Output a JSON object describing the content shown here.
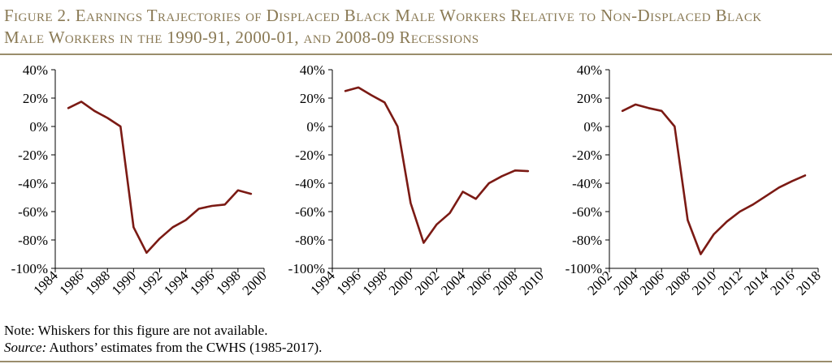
{
  "figure": {
    "title_line1": "Figure 2. Earnings Trajectories of Displaced Black Male Workers Relative to Non-Displaced Black",
    "title_line2": "Male Workers in the 1990-91, 2000-01, and 2008-09 Recessions"
  },
  "notes": {
    "note_label": "Note:",
    "note_text": " Whiskers for this figure are not available.",
    "source_label": "Source:",
    "source_text": " Authors’ estimates from the CWHS (1985-2017)."
  },
  "style": {
    "line_color": "#7b1a14",
    "axis_color": "#000000",
    "rule_color": "#9a8d6c",
    "title_color": "#8a7a55"
  },
  "chart_data": [
    {
      "type": "line",
      "title": "",
      "xlabel": "",
      "ylabel": "",
      "ylim": [
        -100,
        40
      ],
      "xlim": [
        1984,
        2000
      ],
      "yticks": [
        40,
        20,
        0,
        -20,
        -40,
        -60,
        -80,
        -100
      ],
      "ytick_labels": [
        "40%",
        "20%",
        "0%",
        "-20%",
        "-40%",
        "-60%",
        "-80%",
        "-100%"
      ],
      "xticks": [
        1984,
        1986,
        1988,
        1990,
        1992,
        1994,
        1996,
        1998,
        2000
      ],
      "xtick_labels": [
        "1984",
        "1986",
        "1988",
        "1990",
        "1992",
        "1994",
        "1996",
        "1998",
        "2000"
      ],
      "grid": false,
      "series": [
        {
          "x": [
            1985,
            1986,
            1987,
            1988,
            1989,
            1990,
            1991,
            1992,
            1993,
            1994,
            1995,
            1996,
            1997,
            1998,
            1999
          ],
          "y": [
            13,
            17.5,
            11,
            6,
            0,
            -71,
            -89,
            -79,
            -71,
            -66,
            -58,
            -56,
            -55,
            -45,
            -47.5
          ]
        }
      ]
    },
    {
      "type": "line",
      "title": "",
      "xlabel": "",
      "ylabel": "",
      "ylim": [
        -100,
        40
      ],
      "xlim": [
        1994,
        2010
      ],
      "yticks": [
        40,
        20,
        0,
        -20,
        -40,
        -60,
        -80,
        -100
      ],
      "ytick_labels": [
        "40%",
        "20%",
        "0%",
        "-20%",
        "-40%",
        "-60%",
        "-80%",
        "-100%"
      ],
      "xticks": [
        1994,
        1996,
        1998,
        2000,
        2002,
        2004,
        2006,
        2008,
        2010
      ],
      "xtick_labels": [
        "1994",
        "1996",
        "1998",
        "2000",
        "2002",
        "2004",
        "2006",
        "2008",
        "2010"
      ],
      "grid": false,
      "series": [
        {
          "x": [
            1995,
            1996,
            1997,
            1998,
            1999,
            2000,
            2001,
            2002,
            2003,
            2004,
            2005,
            2006,
            2007,
            2008,
            2009
          ],
          "y": [
            25,
            27.5,
            22,
            17,
            0,
            -54,
            -82,
            -69,
            -61,
            -46,
            -51,
            -40,
            -35,
            -31,
            -31.5
          ]
        }
      ]
    },
    {
      "type": "line",
      "title": "",
      "xlabel": "",
      "ylabel": "",
      "ylim": [
        -100,
        40
      ],
      "xlim": [
        2002,
        2018
      ],
      "yticks": [
        40,
        20,
        0,
        -20,
        -40,
        -60,
        -80,
        -100
      ],
      "ytick_labels": [
        "40%",
        "20%",
        "0%",
        "-20%",
        "-40%",
        "-60%",
        "-80%",
        "-100%"
      ],
      "xticks": [
        2002,
        2004,
        2006,
        2008,
        2010,
        2012,
        2014,
        2016,
        2018
      ],
      "xtick_labels": [
        "2002",
        "2004",
        "2006",
        "2008",
        "2010",
        "2012",
        "2014",
        "2016",
        "2018"
      ],
      "grid": false,
      "series": [
        {
          "x": [
            2003,
            2004,
            2005,
            2006,
            2007,
            2008,
            2009,
            2010,
            2011,
            2012,
            2013,
            2014,
            2015,
            2016,
            2017
          ],
          "y": [
            11,
            15.5,
            13,
            11,
            0,
            -66,
            -90,
            -76,
            -67,
            -60,
            -55,
            -49,
            -43,
            -38.5,
            -34.5
          ]
        }
      ]
    }
  ]
}
